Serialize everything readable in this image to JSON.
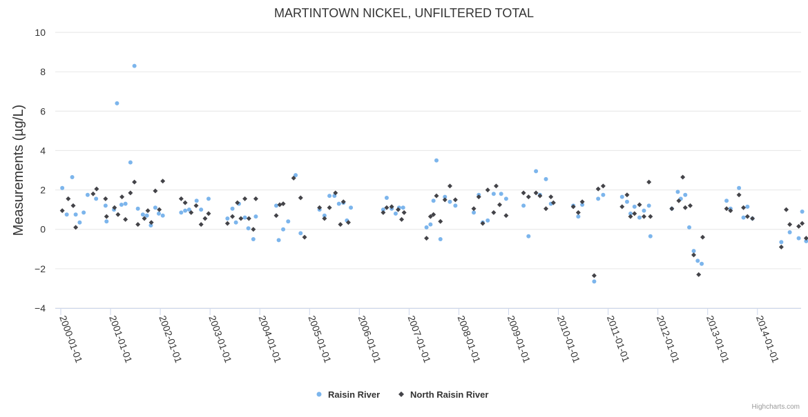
{
  "chart_data": {
    "type": "scatter",
    "title": "MARTINTOWN NICKEL, UNFILTERED TOTAL",
    "ylabel": "Measurements (µg/L)",
    "xlabel": "",
    "ylim": [
      -4,
      10
    ],
    "yticks": [
      -4,
      -2,
      0,
      2,
      4,
      6,
      8,
      10
    ],
    "xlim": [
      2000.0,
      2014.85
    ],
    "xticks": [
      "2000-01-01",
      "2001-01-01",
      "2002-01-01",
      "2003-01-01",
      "2004-01-01",
      "2005-01-01",
      "2006-01-01",
      "2007-01-01",
      "2008-01-01",
      "2009-01-01",
      "2010-01-01",
      "2011-01-01",
      "2012-01-01",
      "2013-01-01",
      "2014-01-01"
    ],
    "grid": "horizontal",
    "legend_position": "bottom-center",
    "credit": "Highcharts.com",
    "series": [
      {
        "name": "Raisin River",
        "color": "#7cb5ec",
        "marker": "circle",
        "points": [
          [
            2000.03,
            2.1
          ],
          [
            2000.12,
            0.75
          ],
          [
            2000.23,
            2.65
          ],
          [
            2000.3,
            0.75
          ],
          [
            2000.38,
            0.35
          ],
          [
            2000.46,
            0.85
          ],
          [
            2000.54,
            1.75
          ],
          [
            2000.71,
            1.55
          ],
          [
            2000.9,
            1.2
          ],
          [
            2000.92,
            0.4
          ],
          [
            2001.07,
            1.0
          ],
          [
            2001.13,
            6.4
          ],
          [
            2001.22,
            1.25
          ],
          [
            2001.3,
            1.3
          ],
          [
            2001.4,
            3.4
          ],
          [
            2001.48,
            8.3
          ],
          [
            2001.55,
            1.05
          ],
          [
            2001.65,
            0.75
          ],
          [
            2001.73,
            0.7
          ],
          [
            2001.81,
            0.2
          ],
          [
            2001.9,
            1.1
          ],
          [
            2001.97,
            0.8
          ],
          [
            2002.05,
            0.7
          ],
          [
            2002.42,
            0.85
          ],
          [
            2002.5,
            0.95
          ],
          [
            2002.58,
            1.0
          ],
          [
            2002.73,
            1.45
          ],
          [
            2002.82,
            1.0
          ],
          [
            2002.97,
            1.55
          ],
          [
            2003.35,
            0.55
          ],
          [
            2003.45,
            1.05
          ],
          [
            2003.52,
            0.35
          ],
          [
            2003.58,
            1.3
          ],
          [
            2003.7,
            0.6
          ],
          [
            2003.77,
            0.05
          ],
          [
            2003.87,
            -0.5
          ],
          [
            2003.92,
            0.65
          ],
          [
            2004.33,
            1.2
          ],
          [
            2004.38,
            -0.55
          ],
          [
            2004.47,
            0.0
          ],
          [
            2004.57,
            0.4
          ],
          [
            2004.72,
            2.75
          ],
          [
            2004.82,
            -0.2
          ],
          [
            2005.2,
            1.0
          ],
          [
            2005.3,
            0.7
          ],
          [
            2005.4,
            1.7
          ],
          [
            2005.5,
            1.7
          ],
          [
            2005.59,
            1.3
          ],
          [
            2005.68,
            1.35
          ],
          [
            2005.75,
            0.45
          ],
          [
            2005.83,
            1.1
          ],
          [
            2006.48,
            1.0
          ],
          [
            2006.55,
            1.6
          ],
          [
            2006.65,
            1.05
          ],
          [
            2006.73,
            0.8
          ],
          [
            2006.8,
            1.1
          ],
          [
            2006.88,
            1.1
          ],
          [
            2007.35,
            0.1
          ],
          [
            2007.43,
            0.25
          ],
          [
            2007.49,
            1.45
          ],
          [
            2007.55,
            3.5
          ],
          [
            2007.63,
            -0.5
          ],
          [
            2007.72,
            1.65
          ],
          [
            2007.82,
            1.4
          ],
          [
            2007.93,
            1.2
          ],
          [
            2008.3,
            0.85
          ],
          [
            2008.4,
            1.75
          ],
          [
            2008.48,
            0.35
          ],
          [
            2008.58,
            0.45
          ],
          [
            2008.7,
            1.8
          ],
          [
            2008.85,
            1.8
          ],
          [
            2008.95,
            1.55
          ],
          [
            2009.3,
            1.2
          ],
          [
            2009.4,
            -0.35
          ],
          [
            2009.55,
            2.95
          ],
          [
            2009.63,
            1.75
          ],
          [
            2009.75,
            2.55
          ],
          [
            2009.85,
            1.3
          ],
          [
            2010.3,
            1.2
          ],
          [
            2010.4,
            0.65
          ],
          [
            2010.48,
            1.25
          ],
          [
            2010.72,
            -2.65
          ],
          [
            2010.8,
            1.55
          ],
          [
            2010.9,
            1.75
          ],
          [
            2011.28,
            1.65
          ],
          [
            2011.38,
            1.4
          ],
          [
            2011.45,
            0.8
          ],
          [
            2011.53,
            1.15
          ],
          [
            2011.63,
            0.6
          ],
          [
            2011.72,
            0.95
          ],
          [
            2011.82,
            1.2
          ],
          [
            2011.85,
            -0.35
          ],
          [
            2012.28,
            1.05
          ],
          [
            2012.4,
            1.9
          ],
          [
            2012.46,
            1.55
          ],
          [
            2012.55,
            1.75
          ],
          [
            2012.63,
            0.1
          ],
          [
            2012.72,
            -1.1
          ],
          [
            2012.8,
            -1.6
          ],
          [
            2012.88,
            -1.75
          ],
          [
            2013.38,
            1.45
          ],
          [
            2013.46,
            1.05
          ],
          [
            2013.63,
            2.1
          ],
          [
            2013.72,
            0.6
          ],
          [
            2013.8,
            1.15
          ],
          [
            2013.9,
            0.55
          ],
          [
            2014.48,
            -0.65
          ],
          [
            2014.65,
            -0.15
          ],
          [
            2014.83,
            -0.45
          ],
          [
            2014.9,
            0.9
          ],
          [
            2014.98,
            -0.6
          ]
        ]
      },
      {
        "name": "North Raisin River",
        "color": "#434348",
        "marker": "diamond",
        "points": [
          [
            2000.03,
            0.95
          ],
          [
            2000.15,
            1.55
          ],
          [
            2000.25,
            1.2
          ],
          [
            2000.3,
            0.1
          ],
          [
            2000.65,
            1.8
          ],
          [
            2000.72,
            2.05
          ],
          [
            2000.9,
            1.55
          ],
          [
            2000.92,
            0.65
          ],
          [
            2001.08,
            1.1
          ],
          [
            2001.15,
            0.75
          ],
          [
            2001.23,
            1.65
          ],
          [
            2001.3,
            0.5
          ],
          [
            2001.4,
            1.85
          ],
          [
            2001.48,
            2.4
          ],
          [
            2001.55,
            0.25
          ],
          [
            2001.68,
            0.55
          ],
          [
            2001.75,
            0.95
          ],
          [
            2001.82,
            0.35
          ],
          [
            2001.9,
            1.95
          ],
          [
            2001.98,
            1.0
          ],
          [
            2002.05,
            2.45
          ],
          [
            2002.42,
            1.55
          ],
          [
            2002.5,
            1.35
          ],
          [
            2002.62,
            0.85
          ],
          [
            2002.72,
            1.2
          ],
          [
            2002.82,
            0.25
          ],
          [
            2002.9,
            0.55
          ],
          [
            2002.97,
            0.8
          ],
          [
            2003.35,
            0.3
          ],
          [
            2003.45,
            0.65
          ],
          [
            2003.55,
            1.35
          ],
          [
            2003.62,
            0.55
          ],
          [
            2003.7,
            1.55
          ],
          [
            2003.78,
            0.55
          ],
          [
            2003.87,
            0.0
          ],
          [
            2003.92,
            1.55
          ],
          [
            2004.33,
            0.7
          ],
          [
            2004.4,
            1.25
          ],
          [
            2004.47,
            1.3
          ],
          [
            2004.68,
            2.6
          ],
          [
            2004.82,
            1.6
          ],
          [
            2004.9,
            -0.4
          ],
          [
            2005.2,
            1.1
          ],
          [
            2005.3,
            0.55
          ],
          [
            2005.4,
            1.1
          ],
          [
            2005.52,
            1.85
          ],
          [
            2005.62,
            0.25
          ],
          [
            2005.68,
            1.4
          ],
          [
            2005.78,
            0.35
          ],
          [
            2006.48,
            0.85
          ],
          [
            2006.55,
            1.1
          ],
          [
            2006.65,
            1.15
          ],
          [
            2006.78,
            1.0
          ],
          [
            2006.85,
            0.5
          ],
          [
            2006.9,
            0.85
          ],
          [
            2007.35,
            -0.45
          ],
          [
            2007.43,
            0.65
          ],
          [
            2007.49,
            0.75
          ],
          [
            2007.55,
            1.7
          ],
          [
            2007.63,
            0.4
          ],
          [
            2007.72,
            1.5
          ],
          [
            2007.82,
            2.2
          ],
          [
            2007.93,
            1.5
          ],
          [
            2008.3,
            1.05
          ],
          [
            2008.4,
            1.65
          ],
          [
            2008.48,
            0.3
          ],
          [
            2008.58,
            2.0
          ],
          [
            2008.7,
            0.85
          ],
          [
            2008.75,
            2.2
          ],
          [
            2008.82,
            1.25
          ],
          [
            2008.95,
            0.7
          ],
          [
            2009.3,
            1.85
          ],
          [
            2009.4,
            1.65
          ],
          [
            2009.55,
            1.85
          ],
          [
            2009.63,
            1.7
          ],
          [
            2009.75,
            1.05
          ],
          [
            2009.85,
            1.65
          ],
          [
            2009.9,
            1.35
          ],
          [
            2010.3,
            1.15
          ],
          [
            2010.4,
            0.85
          ],
          [
            2010.48,
            1.4
          ],
          [
            2010.72,
            -2.35
          ],
          [
            2010.8,
            2.05
          ],
          [
            2010.9,
            2.2
          ],
          [
            2011.28,
            1.15
          ],
          [
            2011.38,
            1.75
          ],
          [
            2011.45,
            0.65
          ],
          [
            2011.53,
            0.8
          ],
          [
            2011.63,
            1.25
          ],
          [
            2011.72,
            0.65
          ],
          [
            2011.82,
            2.4
          ],
          [
            2011.85,
            0.65
          ],
          [
            2012.28,
            1.05
          ],
          [
            2012.42,
            1.45
          ],
          [
            2012.5,
            2.65
          ],
          [
            2012.55,
            1.1
          ],
          [
            2012.65,
            1.2
          ],
          [
            2012.72,
            -1.3
          ],
          [
            2012.82,
            -2.3
          ],
          [
            2012.9,
            -0.4
          ],
          [
            2013.38,
            1.05
          ],
          [
            2013.46,
            0.95
          ],
          [
            2013.63,
            1.75
          ],
          [
            2013.72,
            1.1
          ],
          [
            2013.8,
            0.65
          ],
          [
            2013.9,
            0.55
          ],
          [
            2014.48,
            -0.9
          ],
          [
            2014.58,
            1.0
          ],
          [
            2014.65,
            0.25
          ],
          [
            2014.83,
            0.15
          ],
          [
            2014.9,
            0.3
          ],
          [
            2014.98,
            -0.45
          ]
        ]
      }
    ]
  }
}
